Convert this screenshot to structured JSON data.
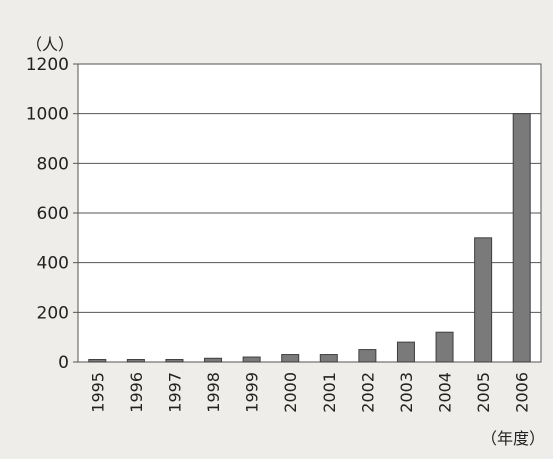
{
  "chart_data": {
    "type": "bar",
    "ylabel": "（人）",
    "xlabel": "（年度）",
    "ylim": [
      0,
      1200
    ],
    "yticks": [
      0,
      200,
      400,
      600,
      800,
      1000,
      1200
    ],
    "categories": [
      "1995",
      "1996",
      "1997",
      "1998",
      "1999",
      "2000",
      "2001",
      "2002",
      "2003",
      "2004",
      "2005",
      "2006"
    ],
    "values": [
      10,
      10,
      10,
      15,
      20,
      30,
      30,
      50,
      80,
      120,
      500,
      1000
    ],
    "grid": true,
    "colors": {
      "bar": "#7a7a7a",
      "bar_edge": "#3f3f3f",
      "plot_bg": "#ffffff",
      "grid": "#555555"
    }
  }
}
